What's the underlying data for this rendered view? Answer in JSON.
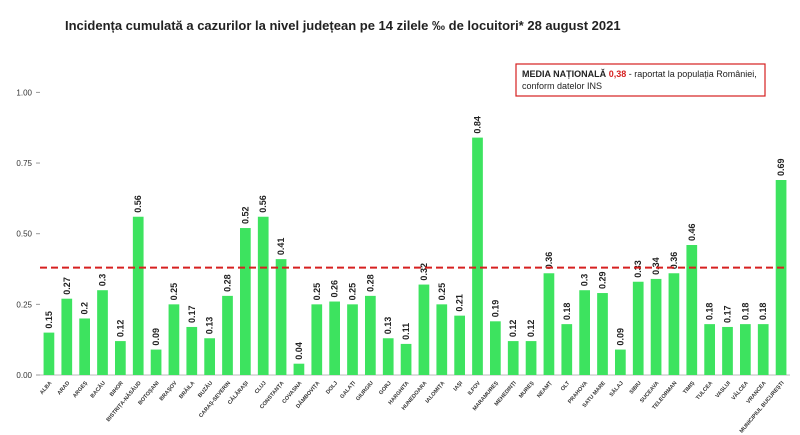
{
  "chart_data": {
    "type": "bar",
    "title": "Incidența cumulată a cazurilor la nivel județean pe 14 zilele ‰ de locuitori* 28 august 2021",
    "categories": [
      "ALBA",
      "ARAD",
      "ARGEȘ",
      "BACĂU",
      "BIHOR",
      "BISTRIȚA-NĂSĂUD",
      "BOTOȘANI",
      "BRAȘOV",
      "BRĂILA",
      "BUZĂU",
      "CARAȘ-SEVERIN",
      "CĂLĂRAȘI",
      "CLUJ",
      "CONSTANȚA",
      "COVASNA",
      "DÂMBOVIȚA",
      "DOLJ",
      "GALAȚI",
      "GIURGIU",
      "GORJ",
      "HARGHITA",
      "HUNEDOARA",
      "IALOMIȚA",
      "IAȘI",
      "ILFOV",
      "MARAMUREȘ",
      "MEHEDINȚI",
      "MUREȘ",
      "NEAMȚ",
      "OLT",
      "PRAHOVA",
      "SATU MARE",
      "SĂLAJ",
      "SIBIU",
      "SUCEAVA",
      "TELEORMAN",
      "TIMIȘ",
      "TULCEA",
      "VASLUI",
      "VÂLCEA",
      "VRANCEA",
      "MUNICIPIUL BUCUREȘTI"
    ],
    "values": [
      0.15,
      0.27,
      0.2,
      0.3,
      0.12,
      0.56,
      0.09,
      0.25,
      0.17,
      0.13,
      0.28,
      0.52,
      0.56,
      0.41,
      0.04,
      0.25,
      0.26,
      0.25,
      0.28,
      0.13,
      0.11,
      0.32,
      0.25,
      0.21,
      0.84,
      0.19,
      0.12,
      0.12,
      0.36,
      0.18,
      0.3,
      0.29,
      0.09,
      0.33,
      0.34,
      0.36,
      0.46,
      0.18,
      0.17,
      0.18,
      0.18,
      0.69
    ],
    "color": "#3de35f",
    "ylim": [
      0,
      1.15
    ],
    "yticks": [
      {
        "value": 0,
        "label": "0.00"
      },
      {
        "value": 0.25,
        "label": "0.25"
      },
      {
        "value": 0.5,
        "label": "0.50"
      },
      {
        "value": 0.75,
        "label": "0.75"
      },
      {
        "value": 1,
        "label": "1.00"
      }
    ],
    "grid": false,
    "reference_line": {
      "value": 0.38,
      "label": "0,38",
      "color": "#d62020"
    },
    "annotation": {
      "label": "MEDIA NAȚIONALĂ",
      "text": "- raportat la populația României,",
      "text2": "conform datelor INS"
    }
  }
}
